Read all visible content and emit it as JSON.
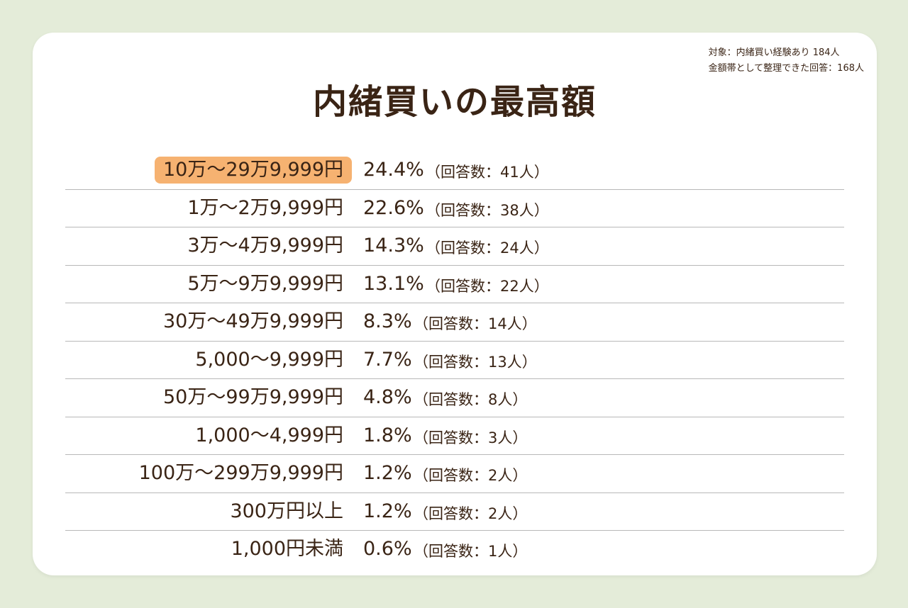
{
  "title": "内緒買いの最高額",
  "notes": {
    "line1": "対象：内緒買い経験あり 184人",
    "line2": "金額帯として整理できた回答：168人"
  },
  "colors": {
    "background": "#e4ecd9",
    "card": "#ffffff",
    "highlight": "#f6b271",
    "text": "#3a2415",
    "divider": "#b8b8b8"
  },
  "chart_data": {
    "type": "table",
    "title": "内緒買いの最高額",
    "categories": [
      "10万～29万9,999円",
      "1万～2万9,999円",
      "3万～4万9,999円",
      "5万～9万9,999円",
      "30万～49万9,999円",
      "5,000～9,999円",
      "50万～99万9,999円",
      "1,000～4,999円",
      "100万～299万9,999円",
      "300万円以上",
      "1,000円未満"
    ],
    "percent": [
      24.4,
      22.6,
      14.3,
      13.1,
      8.3,
      7.7,
      4.8,
      1.8,
      1.2,
      1.2,
      0.6
    ],
    "respondents": [
      41,
      38,
      24,
      22,
      14,
      13,
      8,
      3,
      2,
      2,
      1
    ],
    "rows": [
      {
        "label": "10万～29万9,999円",
        "pct": "24.4%",
        "count": "（回答数：41人）",
        "highlight": true
      },
      {
        "label": "1万～2万9,999円",
        "pct": "22.6%",
        "count": "（回答数：38人）"
      },
      {
        "label": "3万～4万9,999円",
        "pct": "14.3%",
        "count": "（回答数：24人）"
      },
      {
        "label": "5万～9万9,999円",
        "pct": "13.1%",
        "count": "（回答数：22人）"
      },
      {
        "label": "30万～49万9,999円",
        "pct": "8.3%",
        "count": "（回答数：14人）"
      },
      {
        "label": "5,000～9,999円",
        "pct": "7.7%",
        "count": "（回答数：13人）"
      },
      {
        "label": "50万～99万9,999円",
        "pct": "4.8%",
        "count": "（回答数：8人）"
      },
      {
        "label": "1,000～4,999円",
        "pct": "1.8%",
        "count": "（回答数：3人）"
      },
      {
        "label": "100万～299万9,999円",
        "pct": "1.2%",
        "count": "（回答数：2人）"
      },
      {
        "label": "300万円以上",
        "pct": "1.2%",
        "count": "（回答数：2人）"
      },
      {
        "label": "1,000円未満",
        "pct": "0.6%",
        "count": "（回答数：1人）"
      }
    ]
  }
}
